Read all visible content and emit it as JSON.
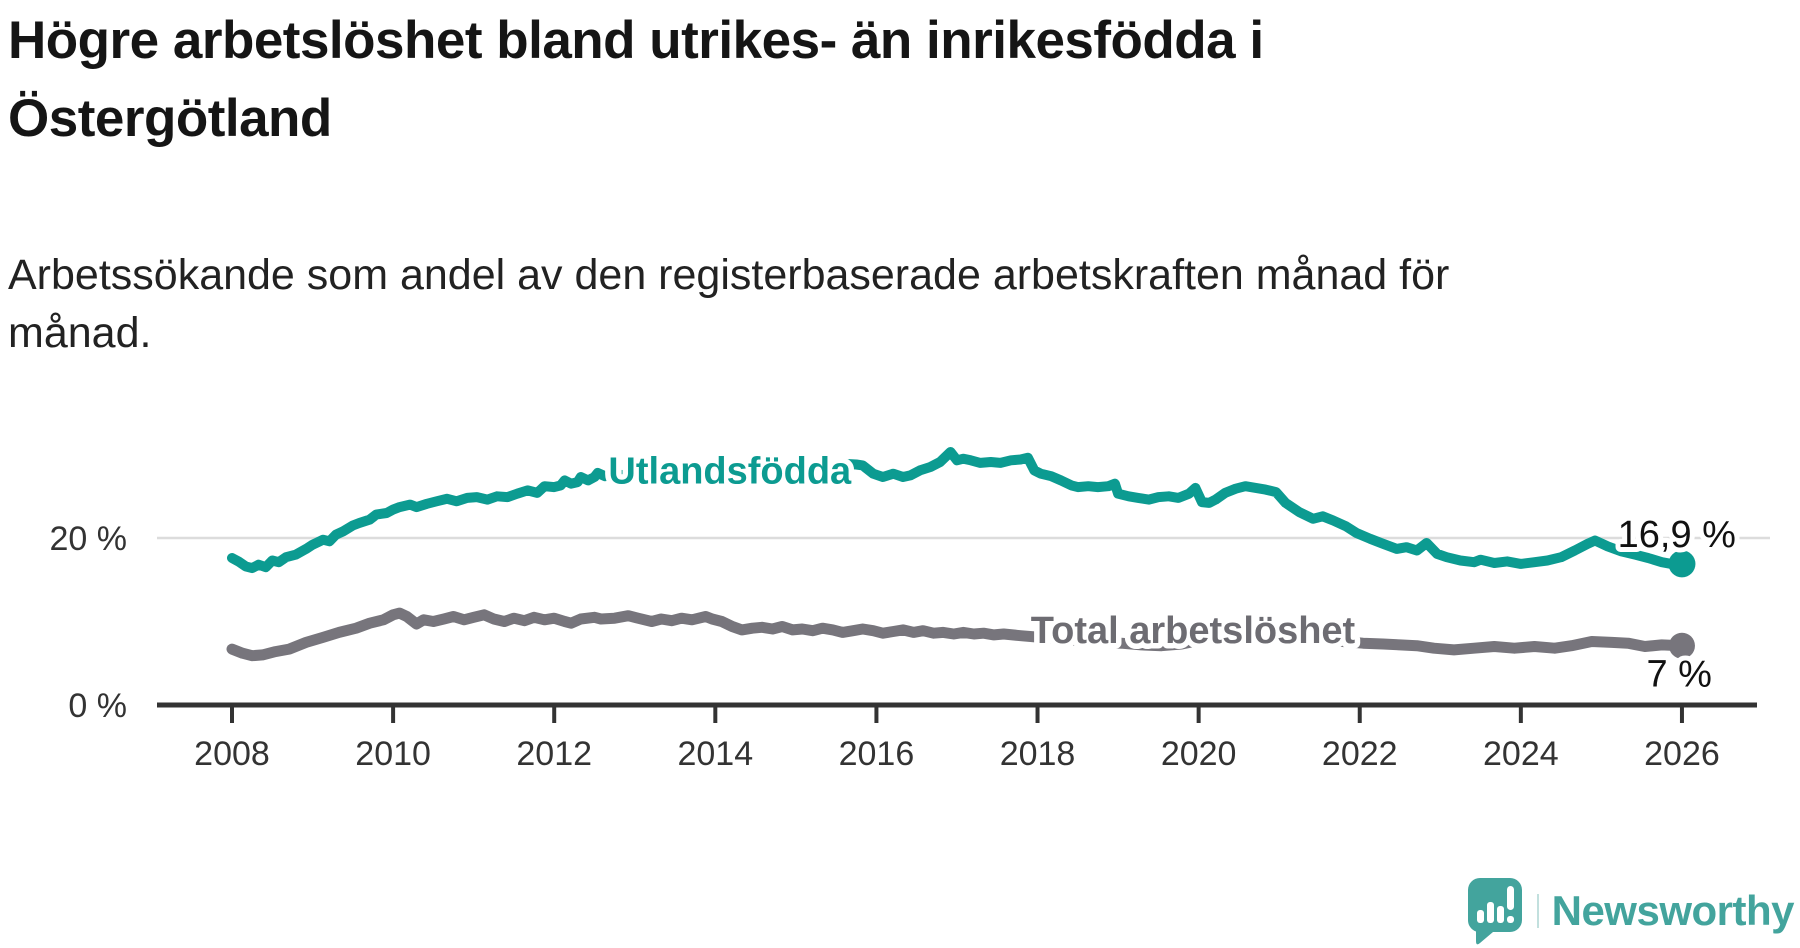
{
  "header": {
    "title": "Högre arbetslöshet bland utrikes- än inrikesfödda i Östergötland",
    "subtitle": "Arbetssökande som andel av den registerbaserade arbetskraften månad för månad."
  },
  "chart_data": {
    "type": "line",
    "title": "Högre arbetslöshet bland utrikes- än inrikesfödda i Östergötland",
    "xlabel": "",
    "ylabel": "",
    "x_ticks": [
      2008,
      2010,
      2012,
      2014,
      2016,
      2018,
      2020,
      2022,
      2024,
      2026
    ],
    "x_range": [
      2008,
      2026.05
    ],
    "y_ticks": [
      {
        "value": 0,
        "label": "0 %"
      },
      {
        "value": 20,
        "label": "20 %"
      }
    ],
    "y_range": [
      0,
      33
    ],
    "grid": "horizontal gridline at 20% only",
    "legend": "inline labels on lines; value labels at line ends",
    "colors": {
      "utlandsfodda": "#0c9b91",
      "total": "#77757c",
      "axis": "#333333",
      "grid": "#dcdcdc",
      "end_label_text": "#111111"
    },
    "series": [
      {
        "name": "Utlandsfödda",
        "color": "#0c9b91",
        "label_color": "#0c9b91",
        "end_label": "16,9 %",
        "end_value": 16.9,
        "label_anchor": {
          "year": 2014.18,
          "value": 28.1
        },
        "points": [
          [
            2008.0,
            17.6
          ],
          [
            2008.08,
            17.2
          ],
          [
            2008.17,
            16.6
          ],
          [
            2008.25,
            16.4
          ],
          [
            2008.33,
            16.8
          ],
          [
            2008.42,
            16.5
          ],
          [
            2008.5,
            17.3
          ],
          [
            2008.58,
            17.1
          ],
          [
            2008.67,
            17.7
          ],
          [
            2008.79,
            18.0
          ],
          [
            2008.92,
            18.7
          ],
          [
            2009.0,
            19.2
          ],
          [
            2009.13,
            19.8
          ],
          [
            2009.21,
            19.6
          ],
          [
            2009.29,
            20.4
          ],
          [
            2009.38,
            20.8
          ],
          [
            2009.5,
            21.5
          ],
          [
            2009.58,
            21.8
          ],
          [
            2009.71,
            22.2
          ],
          [
            2009.79,
            22.8
          ],
          [
            2009.92,
            23.0
          ],
          [
            2010.0,
            23.4
          ],
          [
            2010.08,
            23.7
          ],
          [
            2010.21,
            24.0
          ],
          [
            2010.29,
            23.7
          ],
          [
            2010.42,
            24.1
          ],
          [
            2010.54,
            24.4
          ],
          [
            2010.67,
            24.7
          ],
          [
            2010.79,
            24.4
          ],
          [
            2010.92,
            24.8
          ],
          [
            2011.04,
            24.9
          ],
          [
            2011.17,
            24.6
          ],
          [
            2011.29,
            25.0
          ],
          [
            2011.42,
            24.9
          ],
          [
            2011.54,
            25.3
          ],
          [
            2011.67,
            25.7
          ],
          [
            2011.79,
            25.4
          ],
          [
            2011.88,
            26.2
          ],
          [
            2012.0,
            26.1
          ],
          [
            2012.08,
            26.3
          ],
          [
            2012.13,
            26.9
          ],
          [
            2012.21,
            26.5
          ],
          [
            2012.29,
            26.7
          ],
          [
            2012.33,
            27.3
          ],
          [
            2012.42,
            26.9
          ],
          [
            2012.5,
            27.3
          ],
          [
            2012.54,
            27.8
          ],
          [
            2012.63,
            27.4
          ],
          [
            2012.75,
            27.6
          ],
          [
            2012.92,
            27.5
          ],
          [
            2013.08,
            27.8
          ],
          [
            2013.25,
            27.7
          ],
          [
            2013.42,
            28.0
          ],
          [
            2013.58,
            27.9
          ],
          [
            2013.75,
            28.1
          ],
          [
            2013.92,
            28.0
          ],
          [
            2014.08,
            28.2
          ],
          [
            2014.25,
            28.1
          ],
          [
            2014.42,
            28.4
          ],
          [
            2014.58,
            28.3
          ],
          [
            2014.75,
            28.5
          ],
          [
            2014.92,
            28.4
          ],
          [
            2015.08,
            28.6
          ],
          [
            2015.25,
            28.5
          ],
          [
            2015.42,
            28.7
          ],
          [
            2015.58,
            28.9
          ],
          [
            2015.75,
            28.8
          ],
          [
            2015.83,
            28.7
          ],
          [
            2015.96,
            27.7
          ],
          [
            2016.08,
            27.3
          ],
          [
            2016.21,
            27.7
          ],
          [
            2016.33,
            27.3
          ],
          [
            2016.42,
            27.5
          ],
          [
            2016.54,
            28.1
          ],
          [
            2016.67,
            28.5
          ],
          [
            2016.79,
            29.1
          ],
          [
            2016.92,
            30.3
          ],
          [
            2017.0,
            29.3
          ],
          [
            2017.08,
            29.5
          ],
          [
            2017.17,
            29.3
          ],
          [
            2017.29,
            29.0
          ],
          [
            2017.42,
            29.1
          ],
          [
            2017.54,
            29.0
          ],
          [
            2017.67,
            29.3
          ],
          [
            2017.79,
            29.4
          ],
          [
            2017.88,
            29.6
          ],
          [
            2017.96,
            28.1
          ],
          [
            2018.04,
            27.7
          ],
          [
            2018.17,
            27.4
          ],
          [
            2018.29,
            26.9
          ],
          [
            2018.42,
            26.3
          ],
          [
            2018.5,
            26.1
          ],
          [
            2018.63,
            26.2
          ],
          [
            2018.75,
            26.1
          ],
          [
            2018.88,
            26.2
          ],
          [
            2018.96,
            26.5
          ],
          [
            2019.0,
            25.3
          ],
          [
            2019.13,
            25.0
          ],
          [
            2019.25,
            24.8
          ],
          [
            2019.38,
            24.6
          ],
          [
            2019.5,
            24.9
          ],
          [
            2019.63,
            25.0
          ],
          [
            2019.75,
            24.8
          ],
          [
            2019.88,
            25.3
          ],
          [
            2019.96,
            26.0
          ],
          [
            2020.04,
            24.3
          ],
          [
            2020.13,
            24.2
          ],
          [
            2020.21,
            24.6
          ],
          [
            2020.33,
            25.4
          ],
          [
            2020.46,
            25.9
          ],
          [
            2020.58,
            26.2
          ],
          [
            2020.71,
            26.0
          ],
          [
            2020.83,
            25.8
          ],
          [
            2020.96,
            25.5
          ],
          [
            2021.08,
            24.2
          ],
          [
            2021.25,
            23.1
          ],
          [
            2021.42,
            22.3
          ],
          [
            2021.54,
            22.6
          ],
          [
            2021.67,
            22.1
          ],
          [
            2021.83,
            21.4
          ],
          [
            2021.96,
            20.6
          ],
          [
            2022.13,
            19.9
          ],
          [
            2022.29,
            19.3
          ],
          [
            2022.46,
            18.7
          ],
          [
            2022.58,
            18.9
          ],
          [
            2022.71,
            18.5
          ],
          [
            2022.83,
            19.4
          ],
          [
            2022.96,
            18.1
          ],
          [
            2023.08,
            17.7
          ],
          [
            2023.25,
            17.3
          ],
          [
            2023.42,
            17.1
          ],
          [
            2023.5,
            17.4
          ],
          [
            2023.67,
            17.0
          ],
          [
            2023.83,
            17.2
          ],
          [
            2024.0,
            16.9
          ],
          [
            2024.17,
            17.1
          ],
          [
            2024.33,
            17.3
          ],
          [
            2024.5,
            17.7
          ],
          [
            2024.67,
            18.5
          ],
          [
            2024.83,
            19.3
          ],
          [
            2024.92,
            19.7
          ],
          [
            2025.08,
            19.0
          ],
          [
            2025.25,
            18.4
          ],
          [
            2025.42,
            18.0
          ],
          [
            2025.58,
            17.6
          ],
          [
            2025.75,
            17.1
          ],
          [
            2025.92,
            16.8
          ],
          [
            2026.0,
            16.9
          ]
        ]
      },
      {
        "name": "Total arbetslöshet",
        "color": "#77757c",
        "label_color": "#6d6c72",
        "end_label": "7 %",
        "end_value": 7,
        "label_anchor": {
          "year": 2019.93,
          "value": 9.0
        },
        "points": [
          [
            2008.0,
            6.7
          ],
          [
            2008.13,
            6.2
          ],
          [
            2008.25,
            5.9
          ],
          [
            2008.38,
            6.0
          ],
          [
            2008.54,
            6.4
          ],
          [
            2008.71,
            6.7
          ],
          [
            2008.92,
            7.5
          ],
          [
            2009.13,
            8.1
          ],
          [
            2009.33,
            8.7
          ],
          [
            2009.54,
            9.2
          ],
          [
            2009.71,
            9.8
          ],
          [
            2009.88,
            10.2
          ],
          [
            2010.0,
            10.8
          ],
          [
            2010.08,
            11.0
          ],
          [
            2010.17,
            10.6
          ],
          [
            2010.29,
            9.7
          ],
          [
            2010.38,
            10.2
          ],
          [
            2010.5,
            10.0
          ],
          [
            2010.63,
            10.3
          ],
          [
            2010.75,
            10.6
          ],
          [
            2010.88,
            10.2
          ],
          [
            2011.0,
            10.5
          ],
          [
            2011.13,
            10.8
          ],
          [
            2011.25,
            10.3
          ],
          [
            2011.38,
            10.0
          ],
          [
            2011.5,
            10.4
          ],
          [
            2011.63,
            10.1
          ],
          [
            2011.75,
            10.5
          ],
          [
            2011.88,
            10.2
          ],
          [
            2012.0,
            10.4
          ],
          [
            2012.13,
            10.0
          ],
          [
            2012.21,
            9.8
          ],
          [
            2012.33,
            10.3
          ],
          [
            2012.5,
            10.5
          ],
          [
            2012.58,
            10.3
          ],
          [
            2012.75,
            10.4
          ],
          [
            2012.92,
            10.7
          ],
          [
            2013.04,
            10.4
          ],
          [
            2013.21,
            10.0
          ],
          [
            2013.33,
            10.3
          ],
          [
            2013.46,
            10.1
          ],
          [
            2013.58,
            10.4
          ],
          [
            2013.71,
            10.2
          ],
          [
            2013.88,
            10.6
          ],
          [
            2013.96,
            10.3
          ],
          [
            2014.08,
            10.0
          ],
          [
            2014.21,
            9.4
          ],
          [
            2014.33,
            9.0
          ],
          [
            2014.46,
            9.2
          ],
          [
            2014.58,
            9.3
          ],
          [
            2014.71,
            9.1
          ],
          [
            2014.83,
            9.4
          ],
          [
            2014.96,
            9.0
          ],
          [
            2015.08,
            9.1
          ],
          [
            2015.21,
            8.9
          ],
          [
            2015.33,
            9.2
          ],
          [
            2015.46,
            9.0
          ],
          [
            2015.58,
            8.7
          ],
          [
            2015.71,
            8.9
          ],
          [
            2015.83,
            9.1
          ],
          [
            2015.96,
            8.9
          ],
          [
            2016.08,
            8.6
          ],
          [
            2016.21,
            8.8
          ],
          [
            2016.33,
            9.0
          ],
          [
            2016.46,
            8.7
          ],
          [
            2016.58,
            8.9
          ],
          [
            2016.71,
            8.6
          ],
          [
            2016.83,
            8.7
          ],
          [
            2016.96,
            8.5
          ],
          [
            2017.08,
            8.7
          ],
          [
            2017.21,
            8.5
          ],
          [
            2017.33,
            8.6
          ],
          [
            2017.46,
            8.4
          ],
          [
            2017.58,
            8.5
          ],
          [
            2017.79,
            8.3
          ],
          [
            2018.04,
            8.1
          ],
          [
            2018.29,
            7.9
          ],
          [
            2018.54,
            7.7
          ],
          [
            2018.79,
            7.5
          ],
          [
            2019.04,
            7.4
          ],
          [
            2019.29,
            7.2
          ],
          [
            2019.54,
            7.1
          ],
          [
            2019.79,
            7.3
          ],
          [
            2020.04,
            7.8
          ],
          [
            2020.29,
            8.7
          ],
          [
            2020.54,
            9.3
          ],
          [
            2020.79,
            9.0
          ],
          [
            2021.04,
            8.6
          ],
          [
            2021.29,
            8.2
          ],
          [
            2021.54,
            7.9
          ],
          [
            2021.79,
            7.6
          ],
          [
            2022.04,
            7.4
          ],
          [
            2022.29,
            7.3
          ],
          [
            2022.5,
            7.2
          ],
          [
            2022.71,
            7.1
          ],
          [
            2022.92,
            6.8
          ],
          [
            2023.17,
            6.6
          ],
          [
            2023.42,
            6.8
          ],
          [
            2023.67,
            7.0
          ],
          [
            2023.92,
            6.8
          ],
          [
            2024.17,
            7.0
          ],
          [
            2024.42,
            6.8
          ],
          [
            2024.63,
            7.1
          ],
          [
            2024.88,
            7.6
          ],
          [
            2025.13,
            7.5
          ],
          [
            2025.33,
            7.4
          ],
          [
            2025.54,
            7.0
          ],
          [
            2025.75,
            7.2
          ],
          [
            2026.0,
            7.1
          ]
        ]
      }
    ]
  },
  "branding": {
    "logo_text": "Newsworthy",
    "logo_color": "#43a49d",
    "logo_bar_color": "#ffffff"
  }
}
